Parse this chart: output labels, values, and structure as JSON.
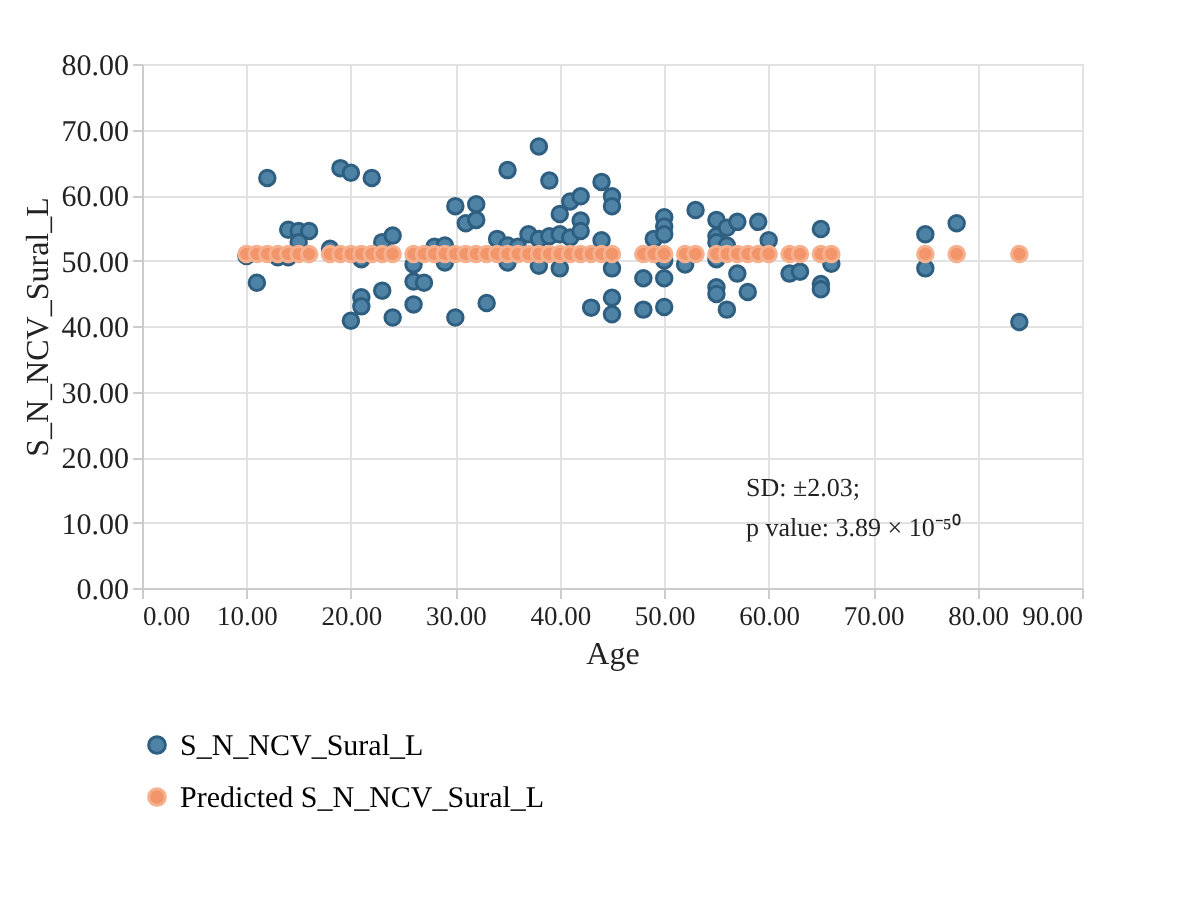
{
  "chart_data": {
    "type": "scatter",
    "xlabel": "Age",
    "ylabel": "S_N_NCV_Sural_L",
    "xlim": [
      0,
      90
    ],
    "xticks": [
      {
        "value": 0,
        "label": "0.00"
      },
      {
        "value": 10,
        "label": "10.00"
      },
      {
        "value": 20,
        "label": "20.00"
      },
      {
        "value": 30,
        "label": "30.00"
      },
      {
        "value": 40,
        "label": "40.00"
      },
      {
        "value": 50,
        "label": "50.00"
      },
      {
        "value": 60,
        "label": "60.00"
      },
      {
        "value": 70,
        "label": "70.00"
      },
      {
        "value": 80,
        "label": "80.00"
      },
      {
        "value": 90,
        "label": "90.00"
      }
    ],
    "ylim": [
      0,
      80
    ],
    "yticks": [
      {
        "value": 0,
        "label": "0.00"
      },
      {
        "value": 10,
        "label": "10.00"
      },
      {
        "value": 20,
        "label": "20.00"
      },
      {
        "value": 30,
        "label": "30.00"
      },
      {
        "value": 40,
        "label": "40.00"
      },
      {
        "value": 50,
        "label": "50.00"
      },
      {
        "value": 60,
        "label": "60.00"
      },
      {
        "value": 70,
        "label": "70.00"
      },
      {
        "value": 80,
        "label": "80.00"
      }
    ],
    "grid": true,
    "legend": "bottom",
    "marker": "circle",
    "annotations": [
      "SD: ±2.03;",
      "p value: 3.89 × 10⁻⁵⁰"
    ],
    "series": [
      {
        "name": "S_N_NCV_Sural_L",
        "color": "#4f83a6",
        "x": [
          12,
          19,
          20,
          22,
          11,
          10,
          14,
          15,
          16,
          15,
          13,
          14,
          18,
          21,
          23,
          24,
          21,
          21,
          20,
          23,
          24,
          26,
          26,
          27,
          26,
          28,
          29,
          29,
          30,
          30,
          32,
          31,
          32,
          33,
          34,
          35,
          35,
          35,
          36,
          37,
          38,
          38,
          38,
          39,
          40,
          39,
          40,
          40,
          41,
          42,
          42,
          41,
          42,
          44,
          44,
          45,
          45,
          45,
          43,
          45,
          45,
          48,
          48,
          49,
          50,
          50,
          50,
          50,
          50,
          50,
          52,
          53,
          55,
          55,
          55,
          56,
          56,
          57,
          59,
          55,
          55,
          55,
          56,
          57,
          58,
          60,
          62,
          63,
          65,
          66,
          65,
          65,
          75,
          78,
          75,
          84
        ],
        "values": [
          62.6,
          64.1,
          63.4,
          62.6,
          46.6,
          50.7,
          54.7,
          54.5,
          54.5,
          52.8,
          50.5,
          50.5,
          51.8,
          50.2,
          52.8,
          53.8,
          44.4,
          43.0,
          40.8,
          45.4,
          41.3,
          49.4,
          46.8,
          46.6,
          43.3,
          52.1,
          52.3,
          49.7,
          58.3,
          41.3,
          58.6,
          55.7,
          56.2,
          43.5,
          53.3,
          63.8,
          52.3,
          49.7,
          52.1,
          54.0,
          67.4,
          49.2,
          53.3,
          62.2,
          57.1,
          53.7,
          54.0,
          48.8,
          59.0,
          59.8,
          56.1,
          53.5,
          54.5,
          62.0,
          53.1,
          59.8,
          58.3,
          48.8,
          42.8,
          44.3,
          41.8,
          47.3,
          42.5,
          53.3,
          56.6,
          55.2,
          54.0,
          50.0,
          47.3,
          42.9,
          49.4,
          57.7,
          56.2,
          53.7,
          52.8,
          55.0,
          52.3,
          55.9,
          55.9,
          50.2,
          45.9,
          44.9,
          42.5,
          48.0,
          45.2,
          53.1,
          48.0,
          48.3,
          54.8,
          49.5,
          46.4,
          45.6,
          54.0,
          55.7,
          48.8,
          40.6
        ]
      },
      {
        "name": "Predicted S_N_NCV_Sural_L",
        "color": "#f2956b",
        "x": [
          10,
          11,
          12,
          13,
          14,
          15,
          16,
          18,
          19,
          20,
          21,
          22,
          23,
          24,
          26,
          27,
          28,
          29,
          30,
          31,
          32,
          33,
          34,
          35,
          36,
          37,
          38,
          39,
          40,
          41,
          42,
          43,
          44,
          45,
          48,
          49,
          50,
          52,
          53,
          55,
          56,
          57,
          58,
          59,
          60,
          62,
          63,
          65,
          66,
          75,
          78,
          84
        ],
        "values": [
          51.0,
          51.0,
          51.0,
          51.0,
          51.0,
          51.0,
          51.0,
          51.0,
          51.0,
          51.0,
          51.0,
          51.0,
          51.0,
          51.0,
          51.0,
          51.0,
          51.0,
          51.0,
          51.0,
          51.0,
          51.0,
          51.0,
          51.0,
          51.0,
          51.0,
          51.0,
          51.0,
          51.0,
          51.0,
          51.0,
          51.0,
          51.0,
          51.0,
          51.0,
          51.0,
          51.0,
          51.0,
          51.0,
          51.0,
          51.0,
          51.0,
          51.0,
          51.0,
          51.0,
          51.0,
          51.0,
          51.0,
          51.0,
          51.0,
          51.0,
          51.0,
          51.0
        ]
      }
    ]
  }
}
